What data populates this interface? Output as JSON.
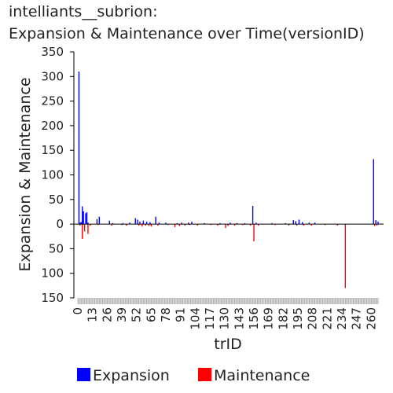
{
  "title_line1": "intelliants__subrion:",
  "title_line2": "Expansion & Maintenance over Time(versionID)",
  "colors": {
    "expansion": "#0000ff",
    "maintenance": "#ff0000",
    "axis": "#000000",
    "text": "#222222"
  },
  "chart_data": {
    "type": "bar",
    "xlabel": "trID",
    "ylabel": "Expansion & Maintenance",
    "x_range": [
      0,
      266
    ],
    "ylim": [
      -150,
      350
    ],
    "y_ticks": [
      {
        "value": 350,
        "label": "350"
      },
      {
        "value": 300,
        "label": "300"
      },
      {
        "value": 250,
        "label": "250"
      },
      {
        "value": 200,
        "label": "200"
      },
      {
        "value": 150,
        "label": "150"
      },
      {
        "value": 100,
        "label": "100"
      },
      {
        "value": 50,
        "label": "50"
      },
      {
        "value": 0,
        "label": "0"
      },
      {
        "value": -50,
        "label": "50"
      },
      {
        "value": -100,
        "label": "100"
      },
      {
        "value": -150,
        "label": "150"
      }
    ],
    "x_ticks": [
      "0",
      "13",
      "26",
      "39",
      "52",
      "65",
      "78",
      "91",
      "104",
      "117",
      "130",
      "143",
      "156",
      "169",
      "182",
      "195",
      "208",
      "221",
      "234",
      "247",
      "260"
    ],
    "series": [
      {
        "name": "Expansion",
        "color": "#0000ff",
        "points": [
          {
            "x": 1,
            "y": 310
          },
          {
            "x": 2,
            "y": 3
          },
          {
            "x": 3,
            "y": 4
          },
          {
            "x": 4,
            "y": 36
          },
          {
            "x": 5,
            "y": 26
          },
          {
            "x": 7,
            "y": 22
          },
          {
            "x": 8,
            "y": 24
          },
          {
            "x": 9,
            "y": 3
          },
          {
            "x": 17,
            "y": 10
          },
          {
            "x": 19,
            "y": 15
          },
          {
            "x": 28,
            "y": 7
          },
          {
            "x": 31,
            "y": 2
          },
          {
            "x": 40,
            "y": 2
          },
          {
            "x": 46,
            "y": 3
          },
          {
            "x": 51,
            "y": 12
          },
          {
            "x": 53,
            "y": 9
          },
          {
            "x": 55,
            "y": 5
          },
          {
            "x": 58,
            "y": 7
          },
          {
            "x": 61,
            "y": 5
          },
          {
            "x": 64,
            "y": 4
          },
          {
            "x": 69,
            "y": 15
          },
          {
            "x": 72,
            "y": 3
          },
          {
            "x": 78,
            "y": 3
          },
          {
            "x": 88,
            "y": 2
          },
          {
            "x": 92,
            "y": 3
          },
          {
            "x": 98,
            "y": 3
          },
          {
            "x": 101,
            "y": 5
          },
          {
            "x": 112,
            "y": 2
          },
          {
            "x": 126,
            "y": 2
          },
          {
            "x": 135,
            "y": 3
          },
          {
            "x": 141,
            "y": 2
          },
          {
            "x": 148,
            "y": 2
          },
          {
            "x": 155,
            "y": 37
          },
          {
            "x": 158,
            "y": 3
          },
          {
            "x": 172,
            "y": 2
          },
          {
            "x": 184,
            "y": 2
          },
          {
            "x": 191,
            "y": 8
          },
          {
            "x": 193,
            "y": 6
          },
          {
            "x": 196,
            "y": 9
          },
          {
            "x": 199,
            "y": 4
          },
          {
            "x": 205,
            "y": 3
          },
          {
            "x": 210,
            "y": 3
          },
          {
            "x": 262,
            "y": 132
          },
          {
            "x": 264,
            "y": 8
          },
          {
            "x": 266,
            "y": 5
          }
        ]
      },
      {
        "name": "Maintenance",
        "color": "#ff0000",
        "points": [
          {
            "x": 2,
            "y": -3
          },
          {
            "x": 4,
            "y": -30
          },
          {
            "x": 6,
            "y": -15
          },
          {
            "x": 9,
            "y": -20
          },
          {
            "x": 11,
            "y": -3
          },
          {
            "x": 18,
            "y": -2
          },
          {
            "x": 30,
            "y": -3
          },
          {
            "x": 39,
            "y": -2
          },
          {
            "x": 43,
            "y": -3
          },
          {
            "x": 54,
            "y": -3
          },
          {
            "x": 57,
            "y": -5
          },
          {
            "x": 60,
            "y": -3
          },
          {
            "x": 63,
            "y": -4
          },
          {
            "x": 65,
            "y": -5
          },
          {
            "x": 71,
            "y": -3
          },
          {
            "x": 80,
            "y": -2
          },
          {
            "x": 86,
            "y": -6
          },
          {
            "x": 90,
            "y": -4
          },
          {
            "x": 95,
            "y": -3
          },
          {
            "x": 99,
            "y": -2
          },
          {
            "x": 106,
            "y": -3
          },
          {
            "x": 118,
            "y": -2
          },
          {
            "x": 124,
            "y": -3
          },
          {
            "x": 131,
            "y": -8
          },
          {
            "x": 133,
            "y": -4
          },
          {
            "x": 139,
            "y": -3
          },
          {
            "x": 146,
            "y": -2
          },
          {
            "x": 153,
            "y": -3
          },
          {
            "x": 156,
            "y": -35
          },
          {
            "x": 160,
            "y": -3
          },
          {
            "x": 175,
            "y": -2
          },
          {
            "x": 187,
            "y": -3
          },
          {
            "x": 194,
            "y": -3
          },
          {
            "x": 200,
            "y": -3
          },
          {
            "x": 207,
            "y": -3
          },
          {
            "x": 219,
            "y": -2
          },
          {
            "x": 230,
            "y": -3
          },
          {
            "x": 237,
            "y": -130
          },
          {
            "x": 263,
            "y": -4
          },
          {
            "x": 265,
            "y": -3
          }
        ]
      }
    ],
    "legend": {
      "position": "bottom",
      "items": [
        {
          "label": "Expansion",
          "color": "#0000ff"
        },
        {
          "label": "Maintenance",
          "color": "#ff0000"
        }
      ]
    }
  }
}
